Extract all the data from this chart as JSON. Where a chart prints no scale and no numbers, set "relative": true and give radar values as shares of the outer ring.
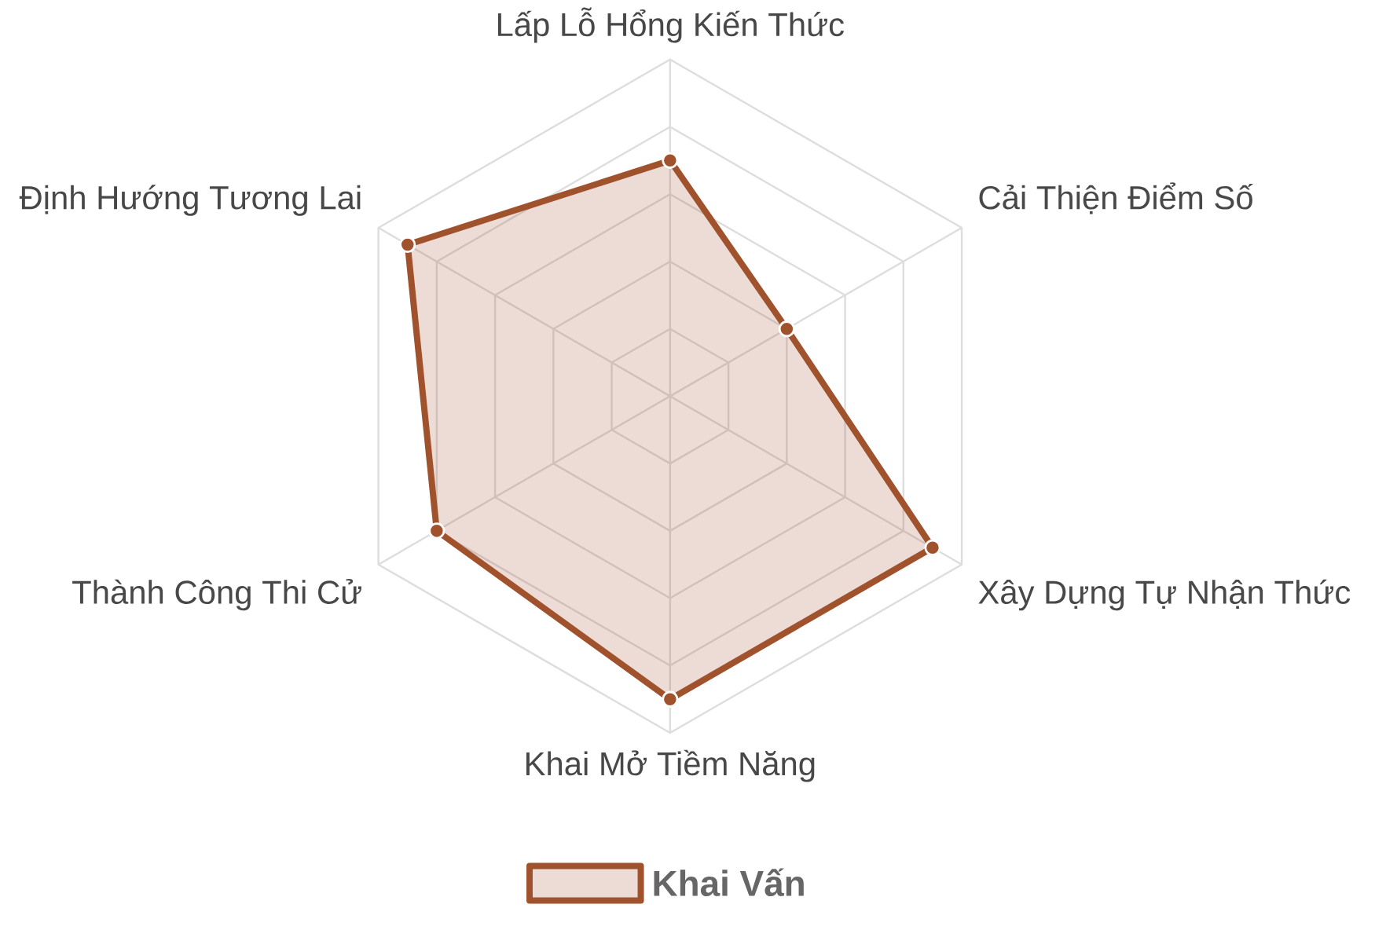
{
  "chart_data": {
    "type": "radar",
    "relative": true,
    "categories": [
      "Lấp Lỗ Hổng Kiến Thức",
      "Cải Thiện Điểm Số",
      "Xây Dựng Tự Nhận Thức",
      "Khai Mở Tiềm Năng",
      "Thành Công Thi Cử",
      "Định Hướng Tương Lai"
    ],
    "series": [
      {
        "name": "Khai Vấn",
        "color": "#a0522d",
        "values": [
          0.7,
          0.4,
          0.9,
          0.9,
          0.8,
          0.9
        ]
      }
    ],
    "grid": true,
    "legend": "bottom",
    "marker": "circle"
  }
}
